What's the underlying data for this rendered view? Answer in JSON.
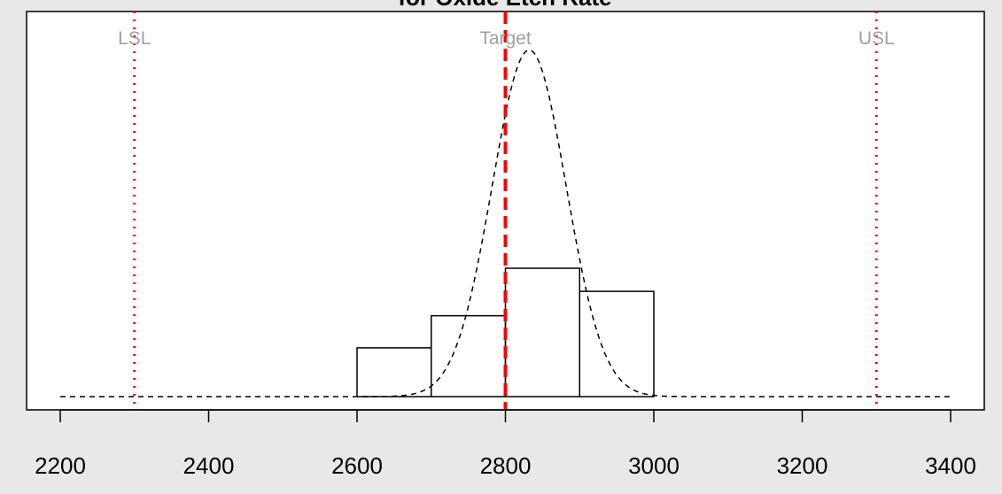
{
  "chart_data": {
    "type": "bar",
    "title": "for Oxide  Etch  Rate",
    "xlabel": "",
    "ylabel": "",
    "xlim": [
      2200,
      3400
    ],
    "x_ticks": [
      2200,
      2400,
      2600,
      2800,
      3000,
      3200,
      3400
    ],
    "x_tick_labels": [
      "2200",
      "2400",
      "2600",
      "2800",
      "3000",
      "3200",
      "3400"
    ],
    "histogram": {
      "bin_edges": [
        2600,
        2700,
        2800,
        2900,
        3000
      ],
      "heights": [
        0.38,
        0.63,
        1.0,
        0.82
      ],
      "height_note": "relative"
    },
    "density_curve": {
      "mean": 2832,
      "sd": 50,
      "x_start": 2200,
      "x_end": 3400,
      "peak_relative_height": 2.7
    },
    "reference_lines": [
      {
        "label": "LSL",
        "x": 2300,
        "style": "dotted",
        "color": "#ff0000"
      },
      {
        "label": "Target",
        "x": 2800,
        "style": "dashed",
        "color": "#ff0000"
      },
      {
        "label": "USL",
        "x": 3300,
        "style": "dotted",
        "color": "#ff0000"
      }
    ],
    "reference_label_color": "#a0a0a0",
    "grid": false,
    "background": "#e8e8e8",
    "plot_background": "#ffffff"
  }
}
